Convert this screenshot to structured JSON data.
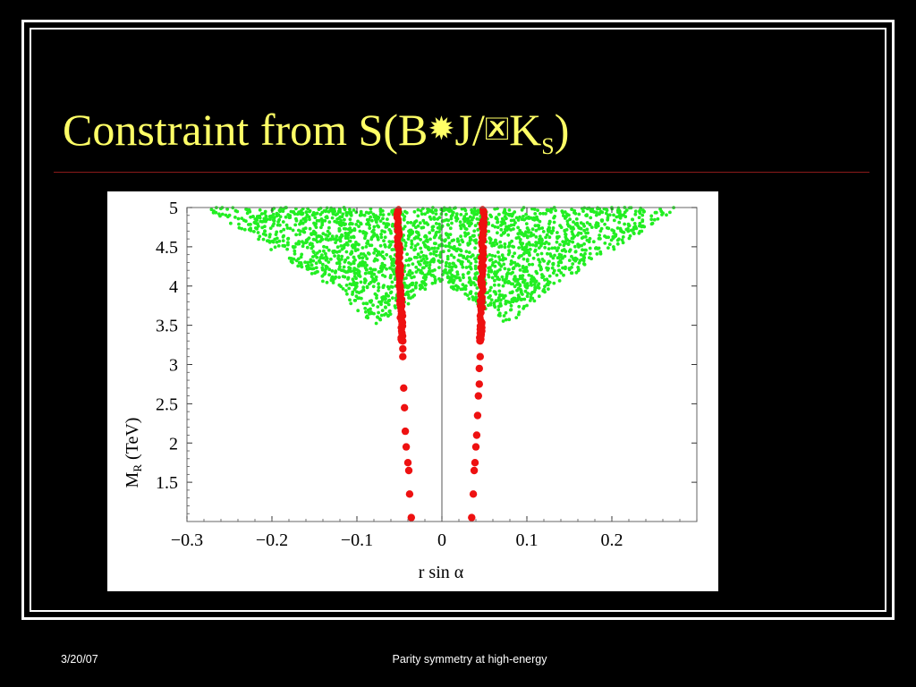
{
  "slide": {
    "title_prefix": "Constraint from S(B",
    "title_glyph_1": "✹",
    "title_mid": "J/",
    "title_glyph_2": "🗷",
    "title_k": "K",
    "title_sub": "S",
    "title_suffix": ")",
    "footer_date": "3/20/07",
    "footer_center": "Parity symmetry at high-energy"
  },
  "colors": {
    "background": "#000000",
    "title": "#ffff66",
    "rule": "#8b1a1a",
    "allowed_points": "#22ee22",
    "constraint_points": "#ee1111"
  },
  "chart_data": {
    "type": "scatter",
    "xlabel": "r sin α",
    "ylabel": "M",
    "ylabel_sub": "R",
    "ylabel_suffix": " (TeV)",
    "xlim": [
      -0.3,
      0.3
    ],
    "ylim": [
      1,
      5
    ],
    "xticks": [
      -0.3,
      -0.2,
      -0.1,
      0,
      0.1,
      0.2
    ],
    "xtick_labels": [
      "−0.3",
      "−0.2",
      "−0.1",
      "0",
      "0.1",
      "0.2"
    ],
    "yticks": [
      1.5,
      2,
      2.5,
      3,
      3.5,
      4,
      4.5,
      5
    ],
    "ytick_labels": [
      "1.5",
      "2",
      "2.5",
      "3",
      "3.5",
      "4",
      "4.5",
      "5"
    ],
    "zero_line": true,
    "series": [
      {
        "color": "green",
        "description_region": "dense band of allowed points above ~3.5 TeV forming a V-shape around r sin α = 0",
        "boundary": {
          "x": [
            -0.28,
            -0.2,
            -0.12,
            -0.08,
            -0.05,
            0,
            0.05,
            0.08,
            0.12,
            0.2,
            0.28
          ],
          "ymin": [
            5.0,
            4.45,
            3.9,
            3.5,
            3.7,
            4.05,
            3.7,
            3.5,
            3.9,
            4.45,
            5.0
          ]
        }
      },
      {
        "color": "red",
        "points": [
          {
            "x": -0.052,
            "y": 4.95
          },
          {
            "x": -0.051,
            "y": 4.7
          },
          {
            "x": -0.05,
            "y": 4.45
          },
          {
            "x": -0.049,
            "y": 4.2
          },
          {
            "x": -0.049,
            "y": 4.0
          },
          {
            "x": -0.048,
            "y": 3.8
          },
          {
            "x": -0.047,
            "y": 3.55
          },
          {
            "x": -0.047,
            "y": 3.4
          },
          {
            "x": -0.046,
            "y": 3.3
          },
          {
            "x": -0.046,
            "y": 3.2
          },
          {
            "x": -0.046,
            "y": 3.1
          },
          {
            "x": -0.045,
            "y": 2.7
          },
          {
            "x": -0.044,
            "y": 2.45
          },
          {
            "x": -0.043,
            "y": 2.15
          },
          {
            "x": -0.042,
            "y": 1.95
          },
          {
            "x": -0.04,
            "y": 1.75
          },
          {
            "x": -0.039,
            "y": 1.65
          },
          {
            "x": -0.038,
            "y": 1.35
          },
          {
            "x": -0.036,
            "y": 1.05
          },
          {
            "x": 0.049,
            "y": 4.95
          },
          {
            "x": 0.049,
            "y": 4.7
          },
          {
            "x": 0.048,
            "y": 4.45
          },
          {
            "x": 0.048,
            "y": 4.2
          },
          {
            "x": 0.047,
            "y": 4.0
          },
          {
            "x": 0.047,
            "y": 3.8
          },
          {
            "x": 0.046,
            "y": 3.55
          },
          {
            "x": 0.045,
            "y": 3.4
          },
          {
            "x": 0.045,
            "y": 3.3
          },
          {
            "x": 0.045,
            "y": 3.1
          },
          {
            "x": 0.044,
            "y": 2.95
          },
          {
            "x": 0.044,
            "y": 2.75
          },
          {
            "x": 0.043,
            "y": 2.6
          },
          {
            "x": 0.042,
            "y": 2.35
          },
          {
            "x": 0.041,
            "y": 2.1
          },
          {
            "x": 0.04,
            "y": 1.95
          },
          {
            "x": 0.039,
            "y": 1.75
          },
          {
            "x": 0.038,
            "y": 1.65
          },
          {
            "x": 0.037,
            "y": 1.35
          },
          {
            "x": 0.035,
            "y": 1.05
          }
        ]
      }
    ]
  }
}
